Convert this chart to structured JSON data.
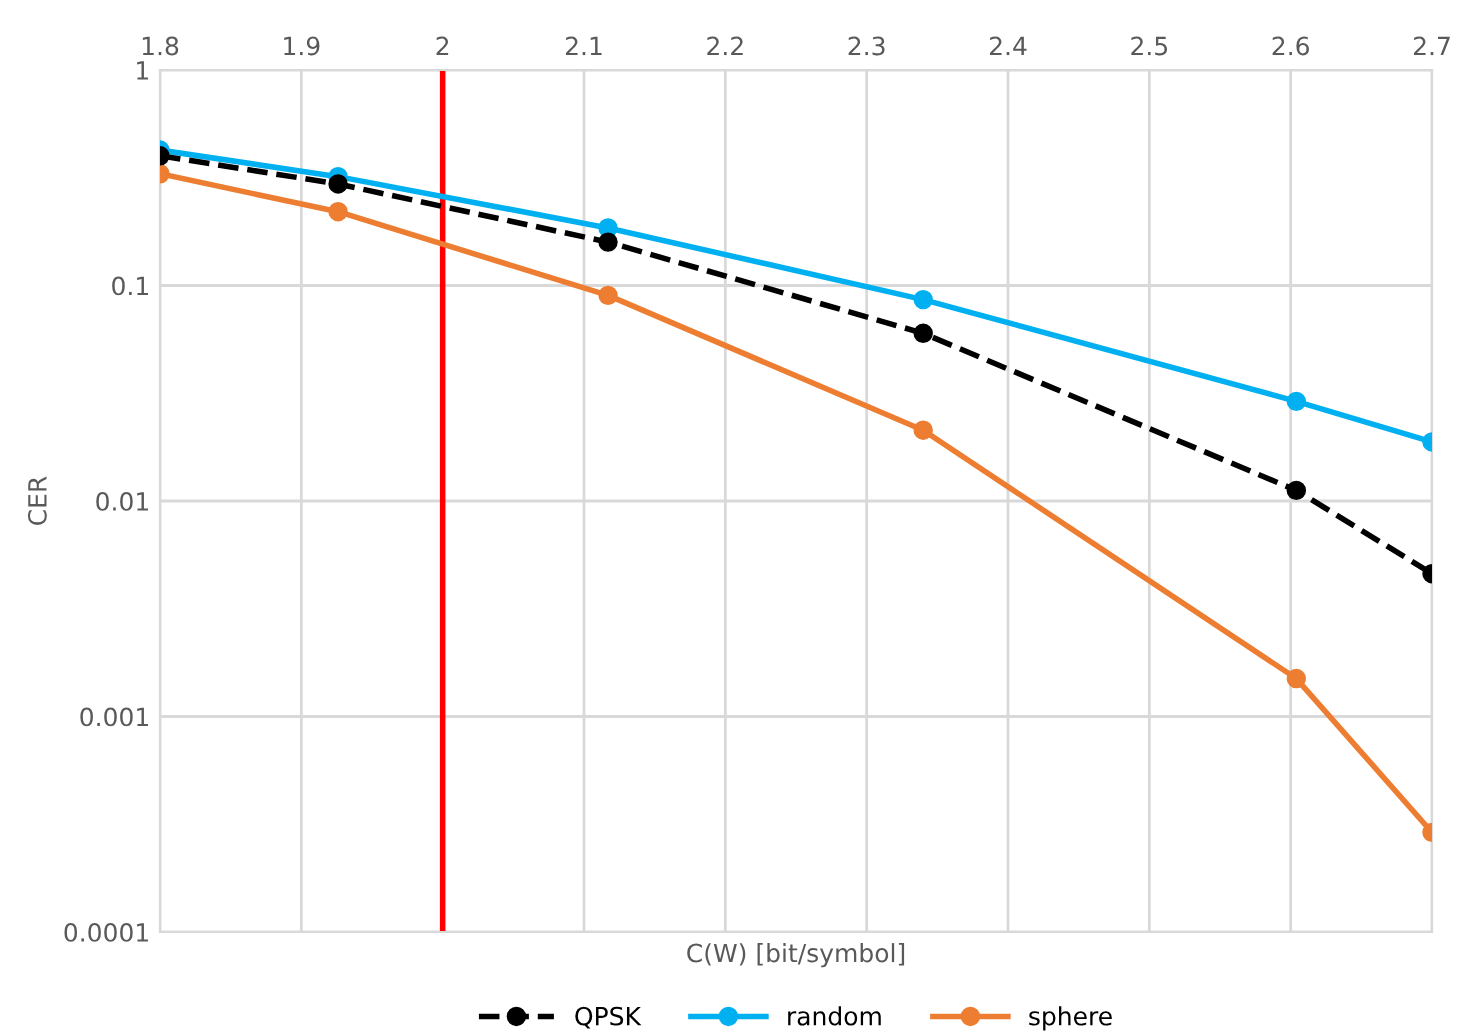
{
  "chart_data": {
    "type": "line",
    "xlabel": "C(W) [bit/symbol]",
    "ylabel": "CER",
    "x": [
      1.8,
      1.926,
      2.117,
      2.34,
      2.604,
      2.7
    ],
    "series": [
      {
        "name": "QPSK",
        "color": "#000000",
        "line_style": "dashed",
        "values": [
          0.4,
          0.296,
          0.159,
          0.06,
          0.0112,
          0.0046
        ]
      },
      {
        "name": "random",
        "color": "#00b0f0",
        "line_style": "solid",
        "values": [
          0.425,
          0.32,
          0.185,
          0.086,
          0.029,
          0.0188
        ]
      },
      {
        "name": "sphere",
        "color": "#ed7d31",
        "line_style": "solid",
        "values": [
          0.33,
          0.22,
          0.09,
          0.0213,
          0.0015,
          0.00029
        ]
      }
    ],
    "marker": "circle",
    "log": "y",
    "xlim": [
      1.8,
      2.7
    ],
    "xticks": [
      1.8,
      1.9,
      2,
      2.1,
      2.2,
      2.3,
      2.4,
      2.5,
      2.6,
      2.7
    ],
    "ylim": [
      0.0001,
      1
    ],
    "yticks": [
      0.0001,
      0.001,
      0.01,
      0.1,
      1
    ],
    "ref_lines": [
      {
        "axis": "x",
        "value": 2,
        "color": "#ff0000"
      }
    ],
    "grid": true,
    "legend": "bottom"
  }
}
